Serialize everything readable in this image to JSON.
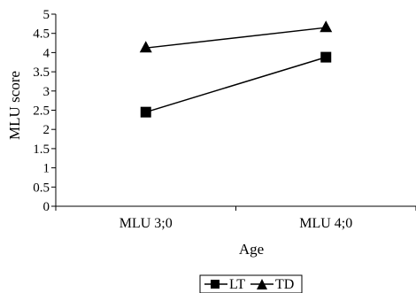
{
  "chart_data": {
    "type": "line",
    "title": "",
    "xlabel": "Age",
    "ylabel": "MLU score",
    "categories": [
      "MLU 3;0",
      "MLU 4;0"
    ],
    "ylim": [
      0,
      5
    ],
    "yticks": [
      "0",
      "0.5",
      "1",
      "1.5",
      "2",
      "2.5",
      "3",
      "3.5",
      "4",
      "4.5",
      "5"
    ],
    "grid": false,
    "legend_position": "bottom",
    "series": [
      {
        "name": "LT",
        "marker": "square",
        "color": "#000000",
        "values": [
          2.45,
          3.88
        ]
      },
      {
        "name": "TD",
        "marker": "triangle",
        "color": "#000000",
        "values": [
          4.12,
          4.65
        ]
      }
    ]
  }
}
